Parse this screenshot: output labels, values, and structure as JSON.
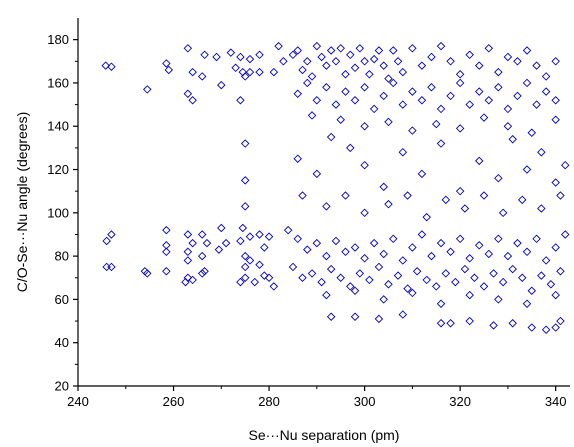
{
  "chart_data": {
    "type": "scatter",
    "title": "",
    "xlabel": "Se···Nu separation (pm)",
    "ylabel": "C/O-Se···Nu angle (degrees)",
    "xlim": [
      240,
      343
    ],
    "ylim": [
      20,
      190
    ],
    "xticks": [
      240,
      260,
      280,
      300,
      320,
      340
    ],
    "yticks": [
      20,
      40,
      60,
      80,
      100,
      120,
      140,
      160,
      180
    ],
    "grid": false,
    "legend": "none",
    "marker": "open-diamond",
    "color": "#0000cc",
    "series": [
      {
        "points": [
          [
            245.8,
            168
          ],
          [
            247,
            167.5
          ],
          [
            246,
            87
          ],
          [
            247,
            90
          ],
          [
            246,
            75
          ],
          [
            247,
            75
          ],
          [
            254.5,
            157
          ],
          [
            254,
            73
          ],
          [
            254.5,
            72
          ],
          [
            258.5,
            169
          ],
          [
            259,
            166
          ],
          [
            258.5,
            92
          ],
          [
            258.5,
            85
          ],
          [
            258.5,
            82
          ],
          [
            258.5,
            73
          ],
          [
            263,
            176
          ],
          [
            264,
            165
          ],
          [
            263,
            155
          ],
          [
            264,
            152
          ],
          [
            266.5,
            173
          ],
          [
            266,
            163
          ],
          [
            263,
            90
          ],
          [
            264,
            86
          ],
          [
            263,
            82
          ],
          [
            263,
            78
          ],
          [
            266,
            90
          ],
          [
            267,
            86
          ],
          [
            266,
            80
          ],
          [
            263,
            70
          ],
          [
            264,
            69
          ],
          [
            266.5,
            73
          ],
          [
            266,
            72
          ],
          [
            262.5,
            68
          ],
          [
            269,
            172
          ],
          [
            270,
            159
          ],
          [
            270,
            93
          ],
          [
            271,
            86
          ],
          [
            269.5,
            83
          ],
          [
            272,
            174
          ],
          [
            273,
            167
          ],
          [
            274,
            172
          ],
          [
            274.5,
            165
          ],
          [
            275,
            163
          ],
          [
            276,
            171
          ],
          [
            276,
            165
          ],
          [
            274,
            152
          ],
          [
            274.5,
            93
          ],
          [
            274,
            87
          ],
          [
            276,
            89
          ],
          [
            275,
            80
          ],
          [
            276,
            78
          ],
          [
            275,
            132
          ],
          [
            275,
            115
          ],
          [
            275,
            103
          ],
          [
            278,
            173
          ],
          [
            278,
            165
          ],
          [
            281,
            165
          ],
          [
            282,
            177
          ],
          [
            283,
            170
          ],
          [
            278,
            90
          ],
          [
            279,
            84
          ],
          [
            280,
            89
          ],
          [
            278,
            76
          ],
          [
            279,
            71
          ],
          [
            280,
            70
          ],
          [
            275,
            75
          ],
          [
            275,
            70
          ],
          [
            274,
            68
          ],
          [
            277,
            68
          ],
          [
            281,
            66
          ],
          [
            285,
            173
          ],
          [
            286,
            175
          ],
          [
            287,
            166
          ],
          [
            288,
            170
          ],
          [
            289,
            163
          ],
          [
            290,
            177
          ],
          [
            291,
            172
          ],
          [
            292,
            168
          ],
          [
            293,
            175
          ],
          [
            294,
            170
          ],
          [
            295,
            176
          ],
          [
            296,
            164
          ],
          [
            297,
            173
          ],
          [
            298,
            167
          ],
          [
            299,
            176
          ],
          [
            300,
            170
          ],
          [
            301,
            164
          ],
          [
            302,
            171
          ],
          [
            303,
            175
          ],
          [
            304,
            168
          ],
          [
            305,
            162
          ],
          [
            306,
            175
          ],
          [
            307,
            170
          ],
          [
            308,
            165
          ],
          [
            310,
            176
          ],
          [
            312,
            168
          ],
          [
            314,
            172
          ],
          [
            316,
            177
          ],
          [
            318,
            170
          ],
          [
            320,
            164
          ],
          [
            322,
            173
          ],
          [
            324,
            168
          ],
          [
            326,
            176
          ],
          [
            328,
            165
          ],
          [
            330,
            172
          ],
          [
            332,
            170
          ],
          [
            334,
            175
          ],
          [
            336,
            168
          ],
          [
            338,
            163
          ],
          [
            340,
            170
          ],
          [
            286,
            155
          ],
          [
            288,
            160
          ],
          [
            290,
            152
          ],
          [
            292,
            158
          ],
          [
            294,
            150
          ],
          [
            296,
            156
          ],
          [
            298,
            152
          ],
          [
            300,
            158
          ],
          [
            302,
            148
          ],
          [
            304,
            154
          ],
          [
            306,
            160
          ],
          [
            308,
            150
          ],
          [
            310,
            156
          ],
          [
            312,
            152
          ],
          [
            314,
            158
          ],
          [
            316,
            148
          ],
          [
            318,
            154
          ],
          [
            320,
            160
          ],
          [
            322,
            150
          ],
          [
            324,
            156
          ],
          [
            326,
            152
          ],
          [
            328,
            158
          ],
          [
            330,
            148
          ],
          [
            332,
            154
          ],
          [
            334,
            160
          ],
          [
            336,
            150
          ],
          [
            338,
            156
          ],
          [
            340,
            152
          ],
          [
            289,
            145
          ],
          [
            295,
            143
          ],
          [
            300,
            140
          ],
          [
            305,
            142
          ],
          [
            310,
            138
          ],
          [
            315,
            141
          ],
          [
            320,
            139
          ],
          [
            325,
            144
          ],
          [
            330,
            140
          ],
          [
            335,
            137
          ],
          [
            340,
            143
          ],
          [
            286,
            125
          ],
          [
            290,
            118
          ],
          [
            293,
            135
          ],
          [
            297,
            130
          ],
          [
            300,
            122
          ],
          [
            304,
            112
          ],
          [
            308,
            128
          ],
          [
            312,
            118
          ],
          [
            316,
            132
          ],
          [
            320,
            110
          ],
          [
            324,
            124
          ],
          [
            328,
            116
          ],
          [
            331,
            134
          ],
          [
            334,
            120
          ],
          [
            337,
            128
          ],
          [
            340,
            114
          ],
          [
            342,
            122
          ],
          [
            287,
            108
          ],
          [
            292,
            103
          ],
          [
            296,
            108
          ],
          [
            300,
            100
          ],
          [
            305,
            104
          ],
          [
            309,
            108
          ],
          [
            313,
            98
          ],
          [
            317,
            106
          ],
          [
            321,
            102
          ],
          [
            325,
            108
          ],
          [
            329,
            100
          ],
          [
            333,
            106
          ],
          [
            337,
            102
          ],
          [
            341,
            108
          ],
          [
            284,
            92
          ],
          [
            286,
            88
          ],
          [
            288,
            83
          ],
          [
            290,
            86
          ],
          [
            292,
            80
          ],
          [
            294,
            87
          ],
          [
            296,
            82
          ],
          [
            298,
            84
          ],
          [
            300,
            79
          ],
          [
            302,
            86
          ],
          [
            304,
            81
          ],
          [
            306,
            88
          ],
          [
            308,
            78
          ],
          [
            310,
            84
          ],
          [
            312,
            90
          ],
          [
            314,
            80
          ],
          [
            316,
            86
          ],
          [
            318,
            82
          ],
          [
            320,
            88
          ],
          [
            322,
            79
          ],
          [
            324,
            85
          ],
          [
            326,
            81
          ],
          [
            328,
            88
          ],
          [
            330,
            80
          ],
          [
            332,
            86
          ],
          [
            334,
            82
          ],
          [
            336,
            88
          ],
          [
            338,
            78
          ],
          [
            340,
            84
          ],
          [
            342,
            90
          ],
          [
            285,
            75
          ],
          [
            287,
            70
          ],
          [
            289,
            72
          ],
          [
            291,
            68
          ],
          [
            293,
            74
          ],
          [
            295,
            70
          ],
          [
            297,
            66
          ],
          [
            299,
            72
          ],
          [
            301,
            69
          ],
          [
            303,
            75
          ],
          [
            305,
            67
          ],
          [
            307,
            71
          ],
          [
            309,
            65
          ],
          [
            311,
            73
          ],
          [
            313,
            69
          ],
          [
            315,
            66
          ],
          [
            317,
            72
          ],
          [
            319,
            68
          ],
          [
            321,
            74
          ],
          [
            323,
            70
          ],
          [
            325,
            66
          ],
          [
            327,
            72
          ],
          [
            329,
            68
          ],
          [
            331,
            74
          ],
          [
            333,
            70
          ],
          [
            335,
            64
          ],
          [
            337,
            71
          ],
          [
            339,
            67
          ],
          [
            341,
            73
          ],
          [
            292,
            62
          ],
          [
            298,
            64
          ],
          [
            304,
            60
          ],
          [
            310,
            63
          ],
          [
            316,
            58
          ],
          [
            322,
            62
          ],
          [
            328,
            60
          ],
          [
            334,
            58
          ],
          [
            340,
            62
          ],
          [
            293,
            52
          ],
          [
            298,
            52
          ],
          [
            303,
            51
          ],
          [
            308,
            53
          ],
          [
            316,
            49
          ],
          [
            318,
            49
          ],
          [
            322,
            50
          ],
          [
            327,
            48
          ],
          [
            331,
            49
          ],
          [
            335,
            47
          ],
          [
            338,
            46
          ],
          [
            340,
            47
          ],
          [
            341,
            50
          ]
        ]
      }
    ]
  }
}
